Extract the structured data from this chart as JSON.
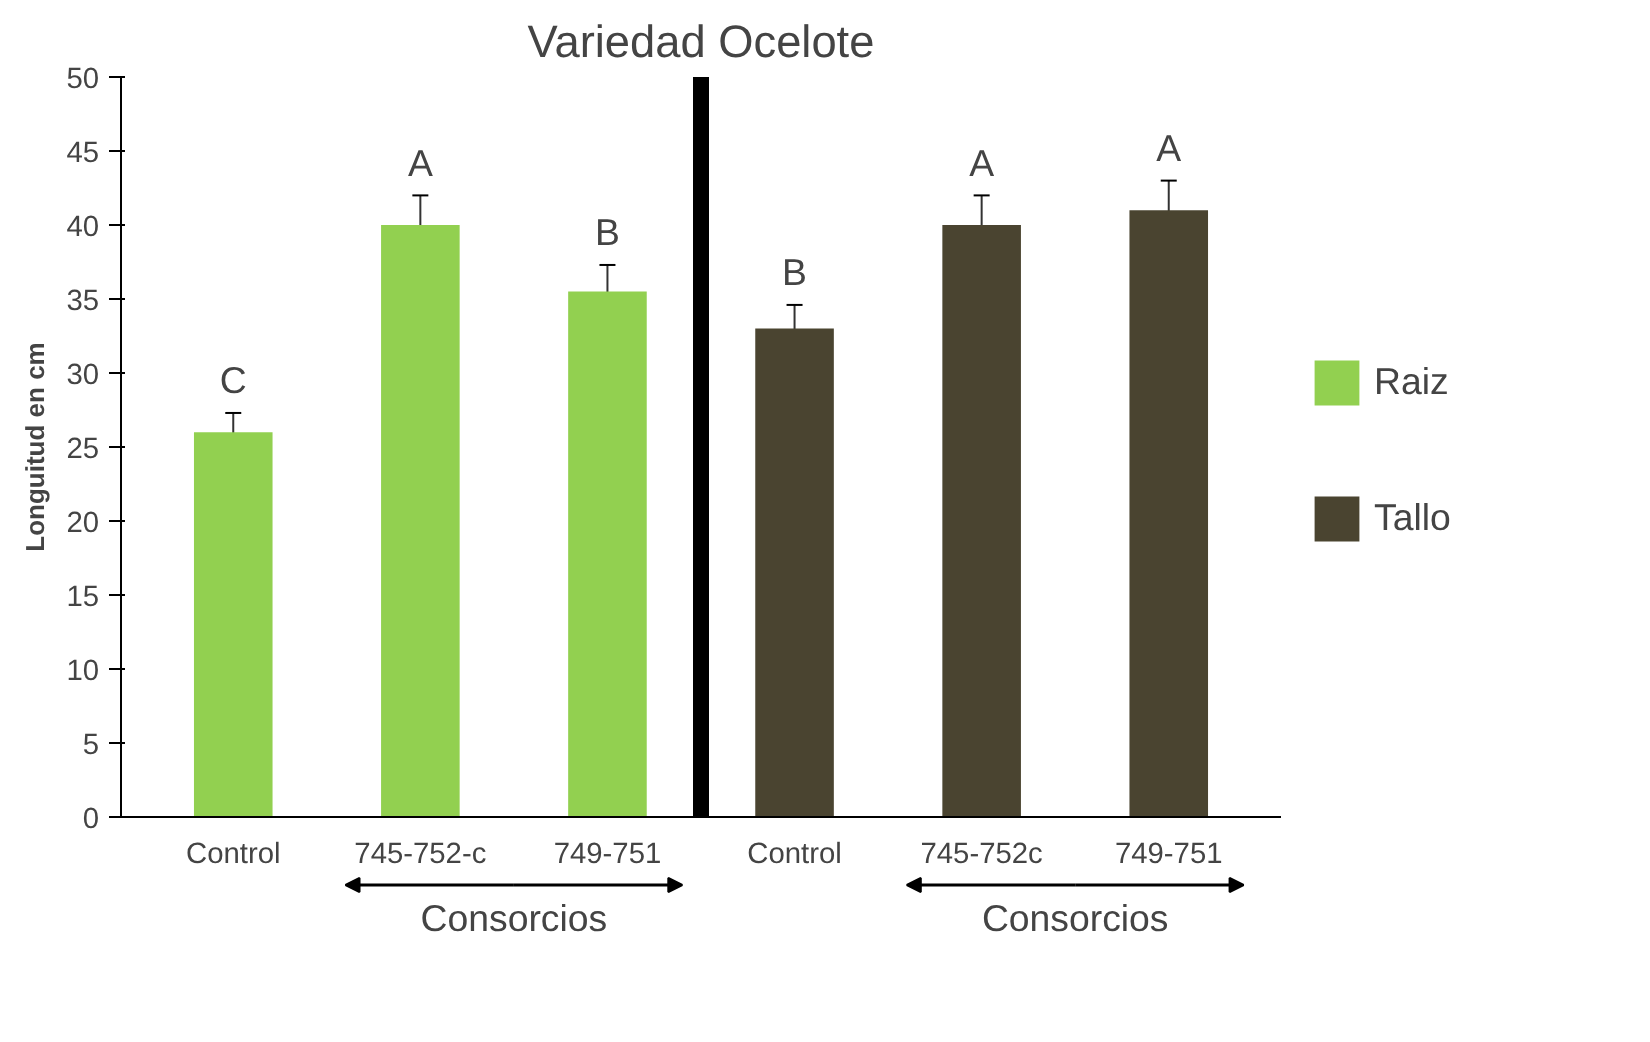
{
  "chart_data": {
    "type": "bar",
    "title": "Variedad Ocelote",
    "ylabel": "Longuitud en cm",
    "categories": [
      "Control",
      "745-752-c",
      "749-751",
      "Control",
      "745-752c",
      "749-751"
    ],
    "series": [
      {
        "name": "Raiz",
        "color": "#92d050",
        "values": [
          26,
          40,
          35.5,
          null,
          null,
          null
        ],
        "errors": [
          1.3,
          2,
          1.8,
          null,
          null,
          null
        ],
        "value_labels": [
          "C",
          "A",
          "B",
          null,
          null,
          null
        ]
      },
      {
        "name": "Tallo",
        "color": "#4a4430",
        "values": [
          null,
          null,
          null,
          33,
          40,
          41
        ],
        "errors": [
          null,
          null,
          null,
          1.6,
          2,
          2
        ],
        "value_labels": [
          null,
          null,
          null,
          "B",
          "A",
          "A"
        ]
      }
    ],
    "ylim": [
      0,
      50
    ],
    "yticks": [
      0,
      5,
      10,
      15,
      20,
      25,
      30,
      35,
      40,
      45,
      50
    ],
    "grid": false,
    "legend": "right",
    "annotations": [
      "Consorcios",
      "Consorcios"
    ]
  }
}
